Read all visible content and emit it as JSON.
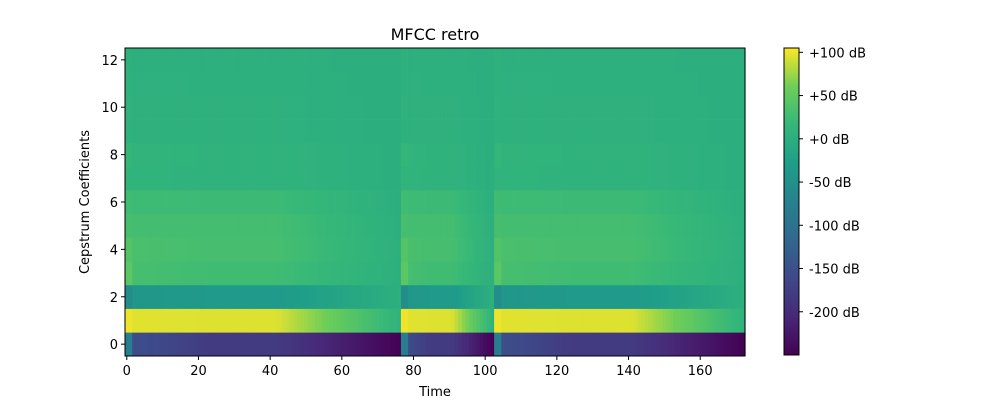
{
  "chart_data": {
    "type": "heatmap",
    "title": "MFCC retro",
    "xlabel": "Time",
    "ylabel": "Cepstrum Coefficients",
    "xlim": [
      -0.5,
      172.5
    ],
    "ylim": [
      -0.5,
      12.5
    ],
    "x_ticks": [
      0,
      20,
      40,
      60,
      80,
      100,
      120,
      140,
      160
    ],
    "x_tick_labels": [
      "0",
      "20",
      "40",
      "60",
      "80",
      "100",
      "120",
      "140",
      "160"
    ],
    "y_ticks": [
      0,
      2,
      4,
      6,
      8,
      10,
      12
    ],
    "y_tick_labels": [
      "0",
      "2",
      "4",
      "6",
      "8",
      "10",
      "12"
    ],
    "colormap": "viridis",
    "colorbar": {
      "vmin": -250,
      "vmax": 105,
      "ticks": [
        100,
        50,
        0,
        -50,
        -100,
        -150,
        -200
      ],
      "tick_labels": [
        "+100 dB",
        "+50 dB",
        "+0 dB",
        "-50 dB",
        "-100 dB",
        "-150 dB",
        "-200 dB"
      ],
      "placement": "right"
    },
    "n_frames": 173,
    "n_coefficients": 13,
    "segments": [
      {
        "start": 0,
        "end": 76
      },
      {
        "start": 77,
        "end": 102
      },
      {
        "start": 103,
        "end": 172
      }
    ],
    "coefficient_levels_db": [
      {
        "coefficient": 0,
        "onset_db": -80,
        "sustain_db": -180,
        "tail_db": -248
      },
      {
        "coefficient": 1,
        "onset_db": 100,
        "sustain_db": 95,
        "tail_db": 8
      },
      {
        "coefficient": 2,
        "onset_db": -55,
        "sustain_db": -35,
        "tail_db": 2
      },
      {
        "coefficient": 3,
        "onset_db": 45,
        "sustain_db": 25,
        "tail_db": 2
      },
      {
        "coefficient": 4,
        "onset_db": 40,
        "sustain_db": 30,
        "tail_db": 3
      },
      {
        "coefficient": 5,
        "onset_db": 30,
        "sustain_db": 28,
        "tail_db": 2
      },
      {
        "coefficient": 6,
        "onset_db": 25,
        "sustain_db": 22,
        "tail_db": 1
      },
      {
        "coefficient": 7,
        "onset_db": 10,
        "sustain_db": 8,
        "tail_db": 0
      },
      {
        "coefficient": 8,
        "onset_db": 15,
        "sustain_db": 8,
        "tail_db": 0
      },
      {
        "coefficient": 9,
        "onset_db": 5,
        "sustain_db": 4,
        "tail_db": 0
      },
      {
        "coefficient": 10,
        "onset_db": 6,
        "sustain_db": 4,
        "tail_db": 0
      },
      {
        "coefficient": 11,
        "onset_db": 5,
        "sustain_db": 3,
        "tail_db": 0
      },
      {
        "coefficient": 12,
        "onset_db": 4,
        "sustain_db": 2,
        "tail_db": 0
      }
    ],
    "grid": false
  }
}
